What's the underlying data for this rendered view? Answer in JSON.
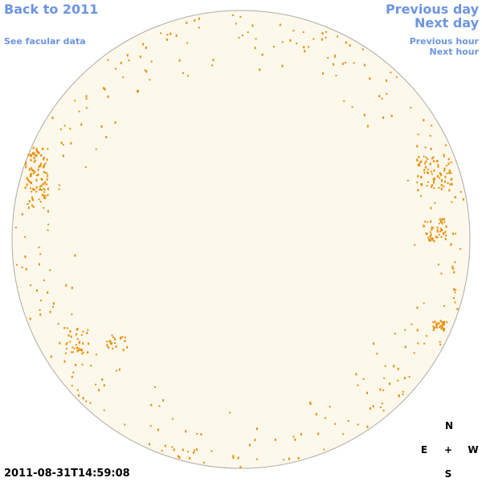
{
  "header": {
    "back": "Back to 2011",
    "facular": "See facular data",
    "previous_day": "Previous day",
    "next_day": "Next day",
    "previous_hour": "Previous hour",
    "next_hour": "Next hour"
  },
  "compass": {
    "north": "N",
    "east": "E",
    "center": "+",
    "west": "W",
    "south": "S"
  },
  "timestamp": "2011-08-31T14:59:08"
}
